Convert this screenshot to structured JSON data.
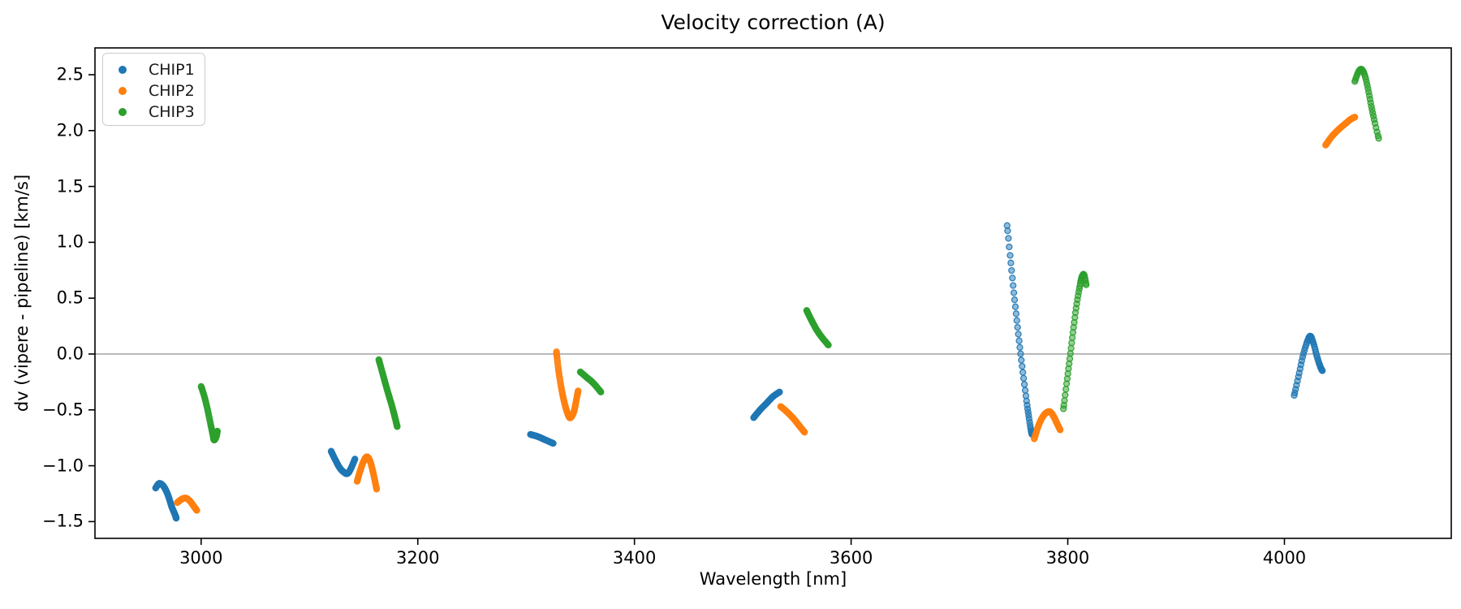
{
  "chart_data": {
    "type": "scatter",
    "title": "Velocity correction (A)",
    "xlabel": "Wavelength [nm]",
    "ylabel": "dv (vipere - pipeline) [km/s]",
    "xlim": [
      2902,
      4154
    ],
    "ylim": [
      -1.65,
      2.74
    ],
    "grid": false,
    "zero_line": {
      "y": 0.0,
      "color": "#9a9a9a"
    },
    "x_ticks": [
      {
        "value": 3000,
        "label": "3000"
      },
      {
        "value": 3200,
        "label": "3200"
      },
      {
        "value": 3400,
        "label": "3400"
      },
      {
        "value": 3600,
        "label": "3600"
      },
      {
        "value": 3800,
        "label": "3800"
      },
      {
        "value": 4000,
        "label": "4000"
      }
    ],
    "y_ticks": [
      {
        "value": -1.5,
        "label": "−1.5"
      },
      {
        "value": -1.0,
        "label": "−1.0"
      },
      {
        "value": -0.5,
        "label": "−0.5"
      },
      {
        "value": 0.0,
        "label": "0.0"
      },
      {
        "value": 0.5,
        "label": "0.5"
      },
      {
        "value": 1.0,
        "label": "1.0"
      },
      {
        "value": 1.5,
        "label": "1.5"
      },
      {
        "value": 2.0,
        "label": "2.0"
      },
      {
        "value": 2.5,
        "label": "2.5"
      }
    ],
    "legend": {
      "position": "upper-left",
      "entries": [
        {
          "label": "CHIP1",
          "color": "#1f77b4"
        },
        {
          "label": "CHIP2",
          "color": "#ff7f0e"
        },
        {
          "label": "CHIP3",
          "color": "#2ca02c"
        }
      ]
    },
    "series": [
      {
        "name": "CHIP1",
        "color": "#1f77b4",
        "marker": "circle",
        "segments": [
          {
            "dots": 70,
            "points": [
              [
                2958,
                -1.2
              ],
              [
                2961,
                -1.16
              ],
              [
                2964,
                -1.17
              ],
              [
                2967,
                -1.21
              ],
              [
                2970,
                -1.28
              ],
              [
                2973,
                -1.37
              ],
              [
                2976,
                -1.44
              ],
              [
                2977,
                -1.47
              ]
            ]
          },
          {
            "dots": 65,
            "points": [
              [
                3120,
                -0.87
              ],
              [
                3124,
                -0.95
              ],
              [
                3128,
                -1.02
              ],
              [
                3132,
                -1.06
              ],
              [
                3135,
                -1.07
              ],
              [
                3138,
                -1.03
              ],
              [
                3142,
                -0.94
              ]
            ]
          },
          {
            "dots": 45,
            "points": [
              [
                3304,
                -0.72
              ],
              [
                3311,
                -0.74
              ],
              [
                3318,
                -0.77
              ],
              [
                3325,
                -0.8
              ]
            ]
          },
          {
            "dots": 50,
            "points": [
              [
                3510,
                -0.57
              ],
              [
                3516,
                -0.5
              ],
              [
                3522,
                -0.44
              ],
              [
                3528,
                -0.38
              ],
              [
                3534,
                -0.34
              ]
            ]
          },
          {
            "dots": 40,
            "points": [
              [
                3744,
                1.15
              ],
              [
                3747,
                0.86
              ],
              [
                3750,
                0.57
              ],
              [
                3753,
                0.3
              ],
              [
                3756,
                0.04
              ],
              [
                3759,
                -0.2
              ],
              [
                3762,
                -0.42
              ],
              [
                3764,
                -0.56
              ],
              [
                3766,
                -0.68
              ],
              [
                3767,
                -0.72
              ]
            ]
          },
          {
            "dots": 42,
            "points": [
              [
                4009,
                -0.37
              ],
              [
                4013,
                -0.2
              ],
              [
                4017,
                -0.02
              ],
              [
                4021,
                0.11
              ],
              [
                4024,
                0.16
              ],
              [
                4027,
                0.09
              ],
              [
                4030,
                -0.02
              ],
              [
                4033,
                -0.11
              ],
              [
                4035,
                -0.15
              ]
            ]
          }
        ]
      },
      {
        "name": "CHIP2",
        "color": "#ff7f0e",
        "marker": "circle",
        "segments": [
          {
            "dots": 60,
            "points": [
              [
                2978,
                -1.33
              ],
              [
                2982,
                -1.3
              ],
              [
                2986,
                -1.29
              ],
              [
                2990,
                -1.32
              ],
              [
                2993,
                -1.36
              ],
              [
                2996,
                -1.4
              ]
            ]
          },
          {
            "dots": 65,
            "points": [
              [
                3144,
                -1.14
              ],
              [
                3147,
                -1.04
              ],
              [
                3150,
                -0.96
              ],
              [
                3153,
                -0.92
              ],
              [
                3156,
                -0.96
              ],
              [
                3159,
                -1.07
              ],
              [
                3162,
                -1.21
              ]
            ]
          },
          {
            "dots": 75,
            "points": [
              [
                3328,
                0.02
              ],
              [
                3330,
                -0.15
              ],
              [
                3333,
                -0.33
              ],
              [
                3336,
                -0.46
              ],
              [
                3339,
                -0.55
              ],
              [
                3341,
                -0.57
              ],
              [
                3344,
                -0.52
              ],
              [
                3346,
                -0.43
              ],
              [
                3348,
                -0.33
              ]
            ]
          },
          {
            "dots": 50,
            "points": [
              [
                3535,
                -0.47
              ],
              [
                3541,
                -0.52
              ],
              [
                3547,
                -0.58
              ],
              [
                3552,
                -0.64
              ],
              [
                3557,
                -0.7
              ]
            ]
          },
          {
            "dots": 60,
            "points": [
              [
                3769,
                -0.76
              ],
              [
                3773,
                -0.64
              ],
              [
                3777,
                -0.56
              ],
              [
                3781,
                -0.52
              ],
              [
                3784,
                -0.52
              ],
              [
                3787,
                -0.56
              ],
              [
                3790,
                -0.62
              ],
              [
                3793,
                -0.68
              ]
            ]
          },
          {
            "dots": 55,
            "points": [
              [
                4038,
                1.87
              ],
              [
                4044,
                1.95
              ],
              [
                4050,
                2.01
              ],
              [
                4056,
                2.06
              ],
              [
                4061,
                2.1
              ],
              [
                4065,
                2.12
              ]
            ]
          }
        ]
      },
      {
        "name": "CHIP3",
        "color": "#2ca02c",
        "marker": "circle",
        "segments": [
          {
            "dots": 55,
            "points": [
              [
                3000,
                -0.29
              ],
              [
                3003,
                -0.38
              ],
              [
                3006,
                -0.5
              ],
              [
                3009,
                -0.64
              ],
              [
                3011,
                -0.73
              ],
              [
                3012,
                -0.77
              ],
              [
                3014,
                -0.74
              ],
              [
                3015,
                -0.69
              ]
            ]
          },
          {
            "dots": 55,
            "points": [
              [
                3164,
                -0.05
              ],
              [
                3168,
                -0.19
              ],
              [
                3172,
                -0.33
              ],
              [
                3176,
                -0.46
              ],
              [
                3179,
                -0.57
              ],
              [
                3181,
                -0.65
              ]
            ]
          },
          {
            "dots": 40,
            "points": [
              [
                3350,
                -0.16
              ],
              [
                3356,
                -0.21
              ],
              [
                3362,
                -0.26
              ],
              [
                3369,
                -0.34
              ]
            ]
          },
          {
            "dots": 48,
            "points": [
              [
                3559,
                0.39
              ],
              [
                3563,
                0.31
              ],
              [
                3568,
                0.22
              ],
              [
                3573,
                0.15
              ],
              [
                3579,
                0.08
              ]
            ]
          },
          {
            "dots": 42,
            "points": [
              [
                3796,
                -0.49
              ],
              [
                3799,
                -0.26
              ],
              [
                3802,
                -0.03
              ],
              [
                3805,
                0.21
              ],
              [
                3808,
                0.43
              ],
              [
                3811,
                0.6
              ],
              [
                3813,
                0.69
              ],
              [
                3815,
                0.71
              ],
              [
                3817,
                0.62
              ]
            ]
          },
          {
            "dots": 34,
            "points": [
              [
                4065,
                2.44
              ],
              [
                4068,
                2.52
              ],
              [
                4071,
                2.55
              ],
              [
                4074,
                2.5
              ],
              [
                4077,
                2.38
              ],
              [
                4080,
                2.23
              ],
              [
                4083,
                2.09
              ],
              [
                4087,
                1.93
              ]
            ]
          }
        ]
      }
    ]
  }
}
